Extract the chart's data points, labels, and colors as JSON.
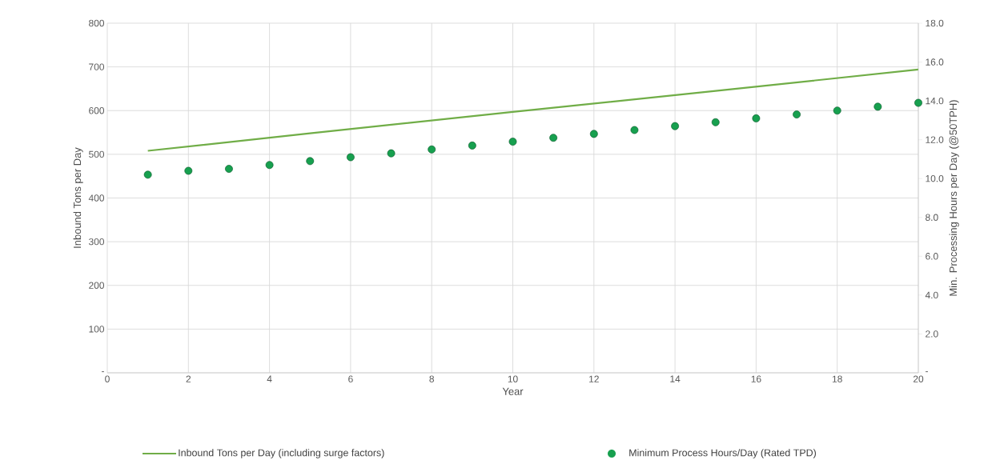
{
  "chart_data": {
    "type": "line",
    "xlabel": "Year",
    "ylabel": "Inbound Tons per Day",
    "y2label": "Min. Processing Hours per Day (@50TPH)",
    "xlim": [
      0,
      20
    ],
    "xticks": [
      0,
      2,
      4,
      6,
      8,
      10,
      12,
      14,
      16,
      18,
      20
    ],
    "ylim": [
      0,
      800
    ],
    "yticks": [
      {
        "value": 0,
        "label": "-"
      },
      100,
      200,
      300,
      400,
      500,
      600,
      700,
      800
    ],
    "y2lim": [
      0,
      18
    ],
    "y2ticks": [
      {
        "value": 0,
        "label": "-"
      },
      {
        "value": 2,
        "label": "2.0"
      },
      {
        "value": 4,
        "label": "4.0"
      },
      {
        "value": 6,
        "label": "6.0"
      },
      {
        "value": 8,
        "label": "8.0"
      },
      {
        "value": 10,
        "label": "10.0"
      },
      {
        "value": 12,
        "label": "12.0"
      },
      {
        "value": 14,
        "label": "14.0"
      },
      {
        "value": 16,
        "label": "16.0"
      },
      {
        "value": 18,
        "label": "18.0"
      }
    ],
    "grid": true,
    "legend": "bottom",
    "series": [
      {
        "name": "Inbound Tons per Day (including surge factors)",
        "color": "#70ad47",
        "marker": "none",
        "x": [
          1,
          5,
          10,
          15,
          20
        ],
        "values": [
          508,
          548,
          597,
          645,
          694
        ]
      },
      {
        "name": "Minimum Process Hours/Day (Rated TPD)",
        "type": "scatter",
        "axis": "y2",
        "color": "#17a04f",
        "marker": "circle",
        "x": [
          1,
          2,
          3,
          4,
          5,
          6,
          7,
          8,
          9,
          10,
          11,
          12,
          13,
          14,
          15,
          16,
          17,
          18,
          19,
          20
        ],
        "values": [
          10.2,
          10.4,
          10.5,
          10.7,
          10.9,
          11.1,
          11.3,
          11.5,
          11.7,
          11.9,
          12.1,
          12.3,
          12.5,
          12.7,
          12.9,
          13.1,
          13.3,
          13.5,
          13.7,
          13.9
        ]
      }
    ]
  }
}
